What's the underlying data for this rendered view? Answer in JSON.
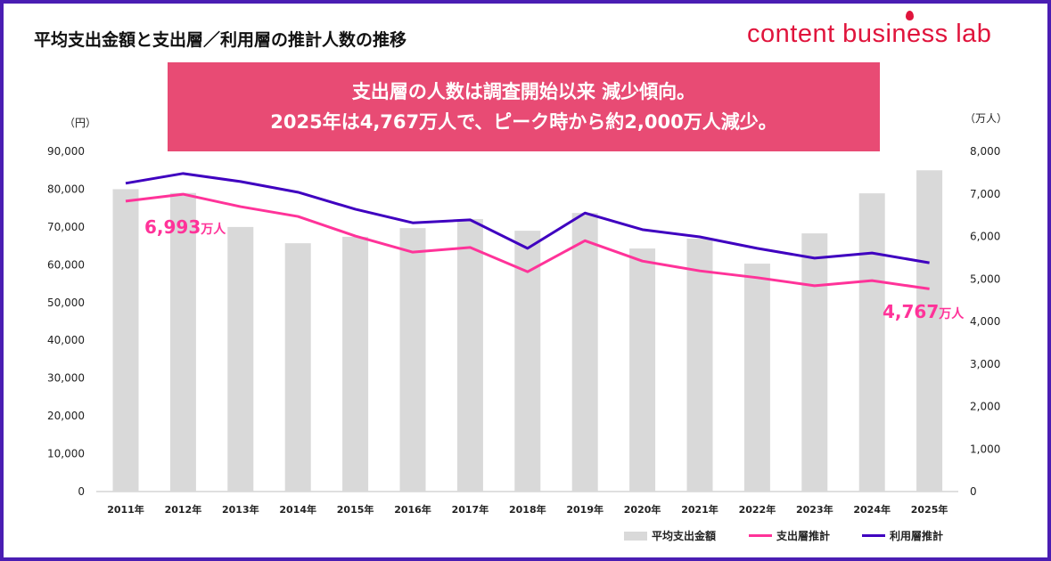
{
  "title": "平均支出金額と支出層／利用層の推計人数の推移",
  "logo": "content business lab",
  "banner": {
    "line1": "支出層の人数は調査開始以来 減少傾向。",
    "line2": "2025年は4,767万人で、ピーク時から約2,000万人減少。"
  },
  "colors": {
    "frame": "#4a1db3",
    "banner": "#e84b74",
    "bars": "#d9d9d9",
    "spend_line": "#ff3399",
    "user_line": "#3f00c0",
    "logo": "#e0143c"
  },
  "chart_data": {
    "type": "bar+line",
    "categories": [
      "2011年",
      "2012年",
      "2013年",
      "2014年",
      "2015年",
      "2016年",
      "2017年",
      "2018年",
      "2019年",
      "2020年",
      "2021年",
      "2022年",
      "2023年",
      "2024年",
      "2025年"
    ],
    "left_axis": {
      "unit": "（円）",
      "range": [
        0,
        90000
      ],
      "ticks": [
        "0",
        "10,000",
        "20,000",
        "30,000",
        "40,000",
        "50,000",
        "60,000",
        "70,000",
        "80,000",
        "90,000"
      ]
    },
    "right_axis": {
      "unit": "（万人）",
      "range": [
        0,
        8000
      ],
      "ticks": [
        "0",
        "1,000",
        "2,000",
        "3,000",
        "4,000",
        "5,000",
        "6,000",
        "7,000",
        "8,000"
      ]
    },
    "series": [
      {
        "name": "平均支出金額",
        "type": "bar",
        "axis": "left",
        "values": [
          80000,
          79000,
          70000,
          65700,
          67400,
          69700,
          72100,
          69000,
          73700,
          64300,
          66900,
          60300,
          68300,
          78900,
          85000
        ]
      },
      {
        "name": "支出層推計",
        "type": "line",
        "axis": "right",
        "values": [
          6830,
          6993,
          6700,
          6470,
          6010,
          5630,
          5740,
          5170,
          5900,
          5420,
          5190,
          5030,
          4840,
          4960,
          4767
        ]
      },
      {
        "name": "利用層推計",
        "type": "line",
        "axis": "right",
        "values": [
          7250,
          7480,
          7290,
          7040,
          6640,
          6320,
          6390,
          5720,
          6550,
          6160,
          5990,
          5720,
          5490,
          5610,
          5380
        ]
      }
    ],
    "annotations": [
      {
        "value": "6,993",
        "unit": "万人"
      },
      {
        "value": "4,767",
        "unit": "万人"
      }
    ],
    "legend": "bottom-right",
    "grid": false
  }
}
